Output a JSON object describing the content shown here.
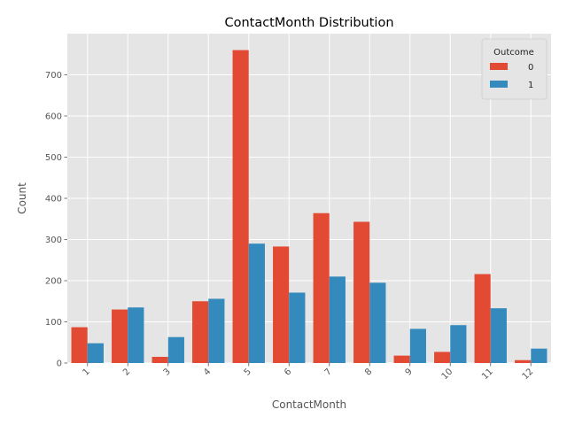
{
  "chart_data": {
    "type": "bar",
    "title": "ContactMonth Distribution",
    "xlabel": "ContactMonth",
    "ylabel": "Count",
    "categories": [
      "1",
      "2",
      "3",
      "4",
      "5",
      "6",
      "7",
      "8",
      "9",
      "10",
      "11",
      "12"
    ],
    "series": [
      {
        "name": "0",
        "color": "#e24a33",
        "values": [
          87,
          130,
          15,
          150,
          760,
          283,
          364,
          343,
          18,
          27,
          216,
          7
        ]
      },
      {
        "name": "1",
        "color": "#348abd",
        "values": [
          48,
          135,
          63,
          156,
          290,
          171,
          210,
          195,
          83,
          92,
          133,
          35
        ]
      }
    ],
    "ylim": [
      0,
      800
    ],
    "yticks": [
      0,
      100,
      200,
      300,
      400,
      500,
      600,
      700
    ],
    "legend": {
      "title": "Outcome",
      "placement": "top-right"
    },
    "grid": true,
    "style": {
      "background": "#e5e5e5",
      "grid_color": "#ffffff"
    }
  }
}
